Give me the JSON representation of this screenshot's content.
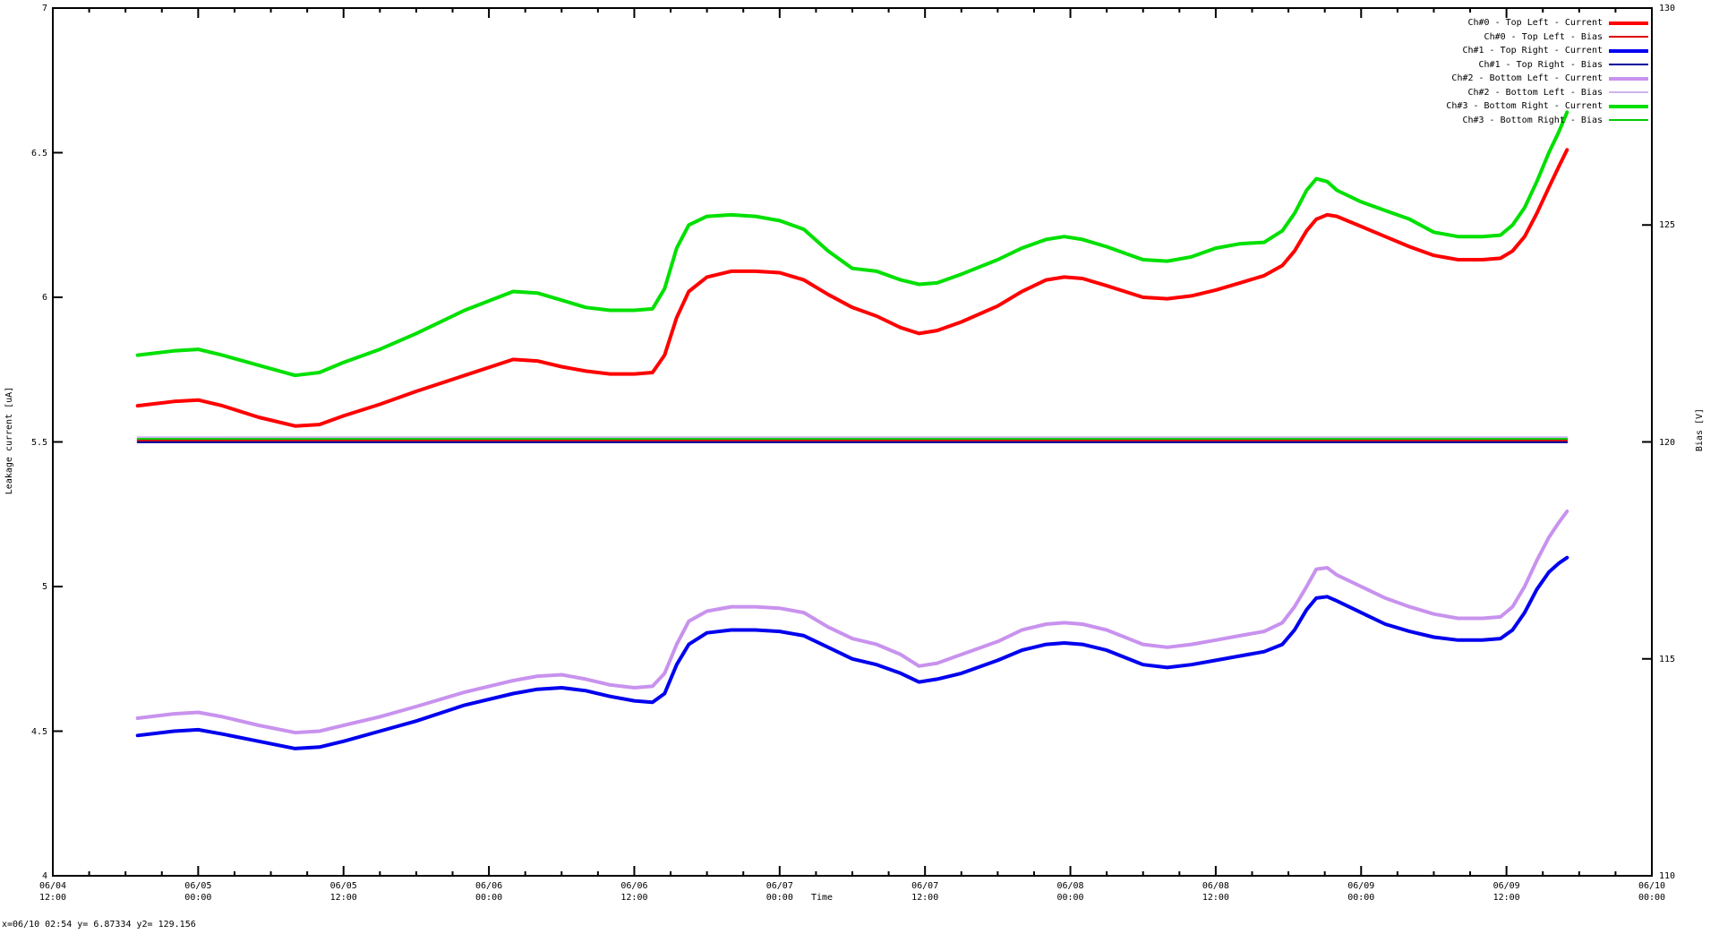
{
  "window": {
    "status_line": "x=06/10 02:54 y= 6.87334 y2= 129.156"
  },
  "chart_data": {
    "type": "line",
    "title": "",
    "xlabel": "Time",
    "ylabel": "Leakage current [uA]",
    "y2label": "Bias [V]",
    "x_range_hours": 132,
    "x_axis_start": "06/04 12:00",
    "x_axis_end": "06/10 00:00",
    "ylim": [
      4,
      7
    ],
    "y2lim": [
      110,
      130
    ],
    "grid": false,
    "legend_position": "top-right-inside",
    "x_major_ticks": [
      {
        "hour": 0,
        "date": "06/04",
        "time": "12:00"
      },
      {
        "hour": 12,
        "date": "06/05",
        "time": "00:00"
      },
      {
        "hour": 24,
        "date": "06/05",
        "time": "12:00"
      },
      {
        "hour": 36,
        "date": "06/06",
        "time": "00:00"
      },
      {
        "hour": 48,
        "date": "06/06",
        "time": "12:00"
      },
      {
        "hour": 60,
        "date": "06/07",
        "time": "00:00"
      },
      {
        "hour": 72,
        "date": "06/07",
        "time": "12:00"
      },
      {
        "hour": 84,
        "date": "06/08",
        "time": "00:00"
      },
      {
        "hour": 96,
        "date": "06/08",
        "time": "12:00"
      },
      {
        "hour": 108,
        "date": "06/09",
        "time": "00:00"
      },
      {
        "hour": 120,
        "date": "06/09",
        "time": "12:00"
      },
      {
        "hour": 132,
        "date": "06/10",
        "time": "00:00"
      }
    ],
    "x_minor_tick_hours": 3,
    "y_ticks": [
      {
        "value": 7,
        "label": "7"
      },
      {
        "value": 6.5,
        "label": "6.5"
      },
      {
        "value": 6,
        "label": "6"
      },
      {
        "value": 5.5,
        "label": "5.5"
      },
      {
        "value": 5,
        "label": "5"
      },
      {
        "value": 4.5,
        "label": "4.5"
      },
      {
        "value": 4,
        "label": "4"
      }
    ],
    "y2_ticks": [
      {
        "value": 130,
        "label": "130"
      },
      {
        "value": 125,
        "label": "125"
      },
      {
        "value": 120,
        "label": "120"
      },
      {
        "value": 115,
        "label": "115"
      },
      {
        "value": 110,
        "label": "110"
      }
    ],
    "x_hours": [
      7,
      10,
      12,
      14,
      17,
      20,
      22,
      24,
      27,
      30,
      34,
      38,
      40,
      42,
      44,
      46,
      48,
      49.5,
      50.5,
      51.5,
      52.5,
      54,
      56,
      58,
      60,
      62,
      64,
      66,
      68,
      70,
      71.5,
      73,
      75,
      78,
      80,
      82,
      83.5,
      85,
      87,
      90,
      92,
      94,
      96,
      98,
      100,
      101.5,
      102.5,
      103.5,
      104.3,
      105.2,
      106,
      108,
      110,
      112,
      114,
      116,
      118,
      119.5,
      120.5,
      121.5,
      122.5,
      123.5,
      124.3,
      125
    ],
    "series": [
      {
        "label": "Ch#0 - Top Left - Current",
        "color": "#ff0000",
        "width": 4,
        "axis": "y1",
        "values": [
          5.625,
          5.64,
          5.645,
          5.625,
          5.585,
          5.555,
          5.56,
          5.59,
          5.63,
          5.675,
          5.73,
          5.785,
          5.78,
          5.76,
          5.745,
          5.735,
          5.735,
          5.74,
          5.8,
          5.93,
          6.02,
          6.07,
          6.09,
          6.09,
          6.085,
          6.06,
          6.01,
          5.965,
          5.935,
          5.895,
          5.875,
          5.885,
          5.915,
          5.97,
          6.02,
          6.06,
          6.07,
          6.065,
          6.04,
          6.0,
          5.995,
          6.005,
          6.025,
          6.05,
          6.075,
          6.11,
          6.16,
          6.23,
          6.27,
          6.285,
          6.28,
          6.245,
          6.21,
          6.175,
          6.145,
          6.13,
          6.13,
          6.135,
          6.16,
          6.21,
          6.29,
          6.38,
          6.45,
          6.51
        ]
      },
      {
        "label": "Ch#0 - Top Left - Bias",
        "color": "#e00000",
        "width": 2,
        "axis": "y2",
        "value": 120
      },
      {
        "label": "Ch#1 - Top Right - Current",
        "color": "#0000ee",
        "width": 4,
        "axis": "y1",
        "values": [
          4.485,
          4.5,
          4.505,
          4.49,
          4.465,
          4.44,
          4.445,
          4.465,
          4.5,
          4.535,
          4.59,
          4.63,
          4.645,
          4.65,
          4.64,
          4.62,
          4.605,
          4.6,
          4.63,
          4.73,
          4.8,
          4.84,
          4.85,
          4.85,
          4.845,
          4.83,
          4.79,
          4.75,
          4.73,
          4.7,
          4.67,
          4.68,
          4.7,
          4.745,
          4.78,
          4.8,
          4.805,
          4.8,
          4.78,
          4.73,
          4.72,
          4.73,
          4.745,
          4.76,
          4.775,
          4.8,
          4.85,
          4.92,
          4.96,
          4.965,
          4.95,
          4.91,
          4.87,
          4.845,
          4.825,
          4.815,
          4.815,
          4.82,
          4.85,
          4.91,
          4.99,
          5.05,
          5.08,
          5.1
        ]
      },
      {
        "label": "Ch#1 - Top Right - Bias",
        "color": "#000099",
        "width": 2,
        "axis": "y2",
        "value": 120
      },
      {
        "label": "Ch#2 - Bottom Left - Current",
        "color": "#c892ee",
        "width": 4,
        "axis": "y1",
        "values": [
          4.545,
          4.56,
          4.565,
          4.55,
          4.52,
          4.495,
          4.5,
          4.52,
          4.55,
          4.585,
          4.635,
          4.675,
          4.69,
          4.695,
          4.68,
          4.66,
          4.65,
          4.655,
          4.7,
          4.8,
          4.88,
          4.915,
          4.93,
          4.93,
          4.925,
          4.91,
          4.86,
          4.82,
          4.8,
          4.765,
          4.725,
          4.735,
          4.765,
          4.81,
          4.85,
          4.87,
          4.875,
          4.87,
          4.85,
          4.8,
          4.79,
          4.8,
          4.815,
          4.83,
          4.845,
          4.875,
          4.93,
          5.0,
          5.06,
          5.065,
          5.04,
          5.0,
          4.96,
          4.93,
          4.905,
          4.89,
          4.89,
          4.895,
          4.93,
          5.0,
          5.09,
          5.17,
          5.22,
          5.26
        ]
      },
      {
        "label": "Ch#2 - Bottom Left - Bias",
        "color": "#cdb3ef",
        "width": 2,
        "axis": "y2",
        "value": 120
      },
      {
        "label": "Ch#3 - Bottom Right - Current",
        "color": "#00e000",
        "width": 4,
        "axis": "y1",
        "values": [
          5.8,
          5.815,
          5.82,
          5.8,
          5.765,
          5.73,
          5.74,
          5.775,
          5.82,
          5.875,
          5.955,
          6.02,
          6.015,
          5.99,
          5.965,
          5.955,
          5.955,
          5.96,
          6.03,
          6.17,
          6.25,
          6.28,
          6.285,
          6.28,
          6.265,
          6.235,
          6.16,
          6.1,
          6.09,
          6.06,
          6.045,
          6.05,
          6.08,
          6.13,
          6.17,
          6.2,
          6.21,
          6.2,
          6.175,
          6.13,
          6.125,
          6.14,
          6.17,
          6.185,
          6.19,
          6.23,
          6.29,
          6.37,
          6.41,
          6.4,
          6.37,
          6.33,
          6.3,
          6.27,
          6.225,
          6.21,
          6.21,
          6.215,
          6.25,
          6.31,
          6.4,
          6.5,
          6.57,
          6.64
        ]
      },
      {
        "label": "Ch#3 - Bottom Right - Bias",
        "color": "#00cc00",
        "width": 2,
        "axis": "y2",
        "value": 120
      }
    ]
  }
}
